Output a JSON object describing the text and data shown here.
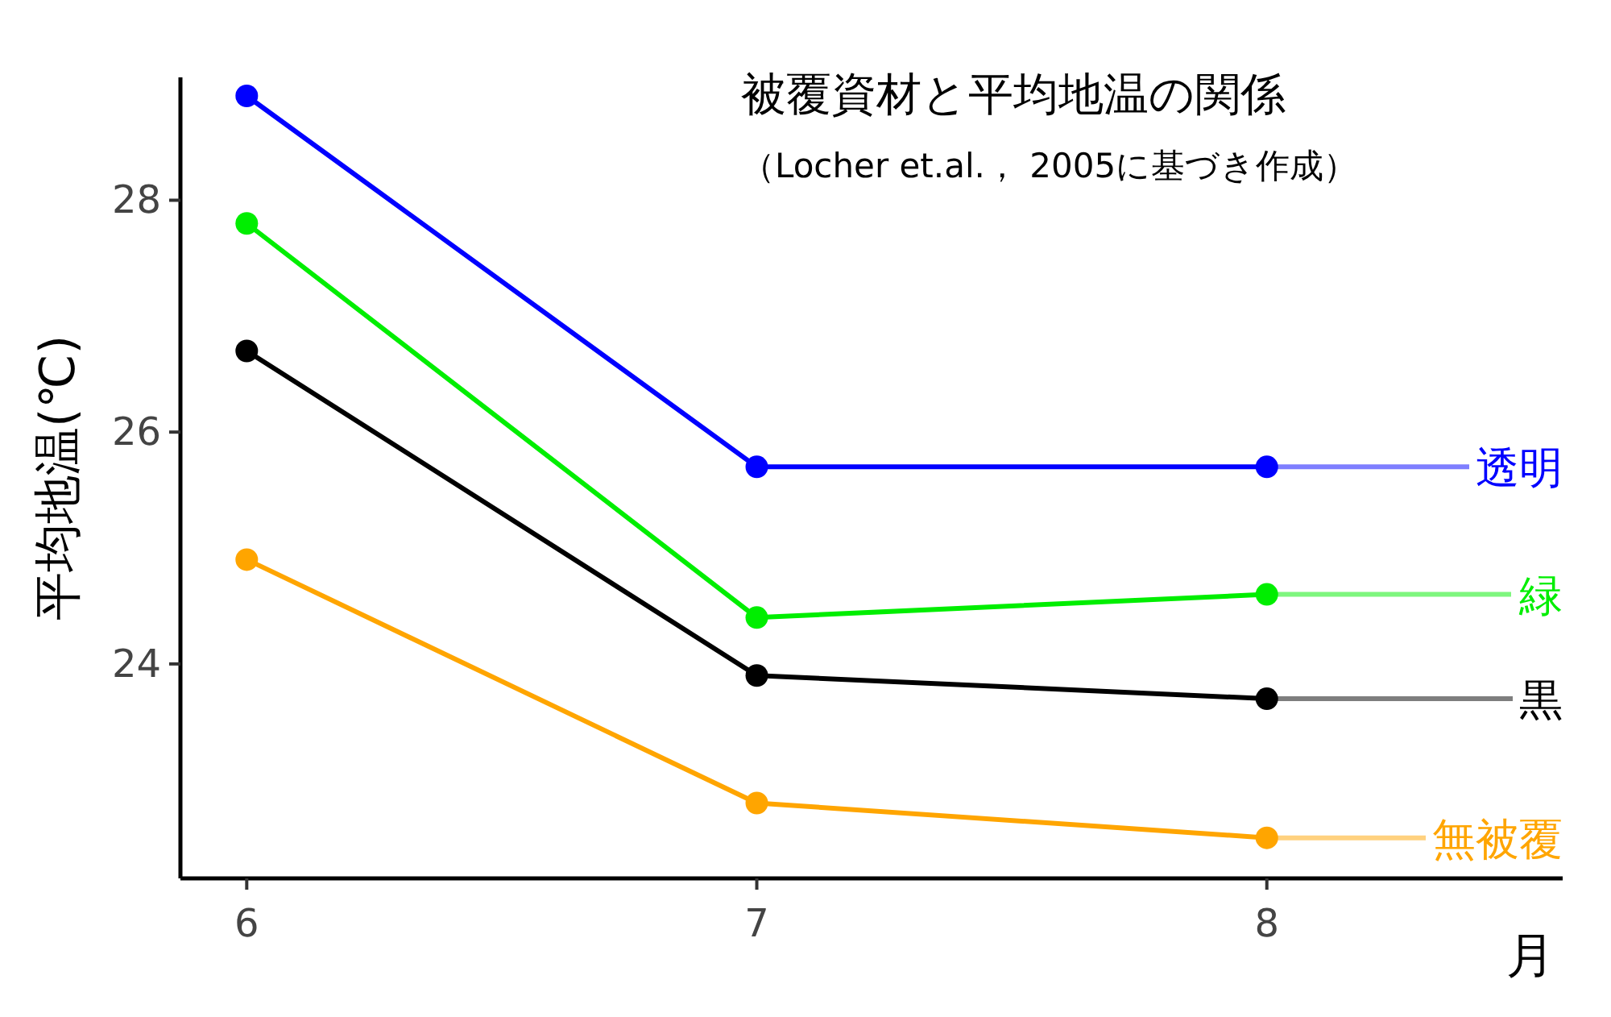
{
  "chart_data": {
    "type": "line",
    "title": "被覆資材と平均地温の関係",
    "subtitle": "（Locher et.al.， 2005に基づき作成）",
    "xlabel": "月",
    "ylabel": "平均地温(℃)",
    "x": [
      6,
      7,
      8
    ],
    "xlim": [
      5.87,
      8.58
    ],
    "xticks": [
      6,
      7,
      8
    ],
    "ylim": [
      22.15,
      29.06
    ],
    "yticks": [
      24,
      26,
      28
    ],
    "marker": "circle",
    "line_style": "solid",
    "grid": false,
    "legend": "right",
    "series": [
      {
        "name": "透明",
        "color": "#0000ff",
        "values": [
          28.9,
          25.7,
          25.7
        ]
      },
      {
        "name": "緑",
        "color": "#00ee00",
        "values": [
          27.8,
          24.4,
          24.6
        ]
      },
      {
        "name": "黒",
        "color": "#000000",
        "values": [
          26.7,
          23.9,
          23.7
        ]
      },
      {
        "name": "無被覆",
        "color": "#ffa500",
        "values": [
          24.9,
          22.8,
          22.5
        ]
      }
    ]
  }
}
